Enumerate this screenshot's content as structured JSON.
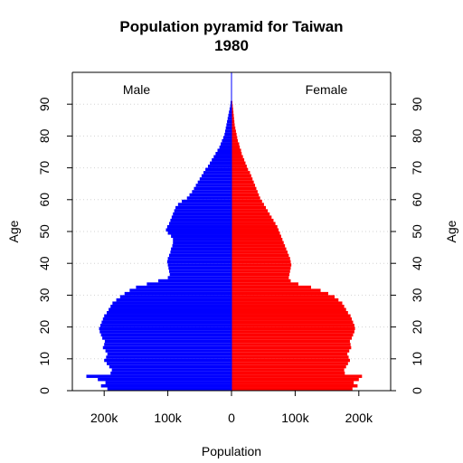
{
  "chart_data": {
    "type": "bar",
    "orientation": "horizontal-pyramid",
    "title": "Population pyramid for Taiwan",
    "subtitle": "1980",
    "xlabel": "Population",
    "ylabel": "Age",
    "legend": {
      "left_label": "Male",
      "right_label": "Female"
    },
    "xlim": [
      -250000,
      250000
    ],
    "ylim": [
      0,
      100
    ],
    "x_ticks": [
      {
        "value": -200000,
        "label": "200k"
      },
      {
        "value": -100000,
        "label": "100k"
      },
      {
        "value": 0,
        "label": "0"
      },
      {
        "value": 100000,
        "label": "100k"
      },
      {
        "value": 200000,
        "label": "200k"
      }
    ],
    "y_ticks": [
      0,
      10,
      20,
      30,
      40,
      50,
      60,
      70,
      80,
      90
    ],
    "grid": "horizontal dotted at age ticks",
    "colors": {
      "male": "#0000ff",
      "female": "#ff0000",
      "center_line": "#0000ff",
      "grid": "#d3d3d3"
    },
    "ages": [
      0,
      1,
      2,
      3,
      4,
      5,
      6,
      7,
      8,
      9,
      10,
      11,
      12,
      13,
      14,
      15,
      16,
      17,
      18,
      19,
      20,
      21,
      22,
      23,
      24,
      25,
      26,
      27,
      28,
      29,
      30,
      31,
      32,
      33,
      34,
      35,
      36,
      37,
      38,
      39,
      40,
      41,
      42,
      43,
      44,
      45,
      46,
      47,
      48,
      49,
      50,
      51,
      52,
      53,
      54,
      55,
      56,
      57,
      58,
      59,
      60,
      61,
      62,
      63,
      64,
      65,
      66,
      67,
      68,
      69,
      70,
      71,
      72,
      73,
      74,
      75,
      76,
      77,
      78,
      79,
      80,
      81,
      82,
      83,
      84,
      85,
      86,
      87,
      88,
      89,
      90
    ],
    "series": [
      {
        "name": "Male",
        "values": [
          195000,
          205000,
          198000,
          210000,
          228000,
          190000,
          188000,
          192000,
          196000,
          200000,
          197000,
          195000,
          198000,
          202000,
          200000,
          199000,
          203000,
          205000,
          207000,
          208000,
          206000,
          204000,
          202000,
          200000,
          196000,
          193000,
          190000,
          187000,
          181000,
          175000,
          168000,
          160000,
          150000,
          133000,
          115000,
          100000,
          97000,
          98000,
          99000,
          100000,
          101000,
          100000,
          98000,
          96000,
          95000,
          93000,
          92000,
          92000,
          95000,
          100000,
          103000,
          101000,
          98000,
          96000,
          94000,
          92000,
          90000,
          88000,
          84000,
          78000,
          70000,
          66000,
          62000,
          59000,
          56000,
          53000,
          50000,
          47000,
          44000,
          41000,
          37000,
          34000,
          31000,
          28000,
          25000,
          22000,
          19000,
          17000,
          15000,
          13000,
          11000,
          10000,
          9000,
          8000,
          7000,
          6000,
          5000,
          4000,
          3000,
          2000,
          1500
        ]
      },
      {
        "name": "Female",
        "values": [
          190000,
          198000,
          192000,
          200000,
          205000,
          178000,
          177000,
          180000,
          183000,
          186000,
          184000,
          182000,
          185000,
          188000,
          187000,
          186000,
          189000,
          191000,
          193000,
          194000,
          193000,
          191000,
          189000,
          187000,
          183000,
          180000,
          177000,
          174000,
          168000,
          162000,
          152000,
          140000,
          125000,
          105000,
          93000,
          90000,
          91000,
          92000,
          93000,
          94000,
          93000,
          92000,
          90000,
          88000,
          86000,
          84000,
          82000,
          80000,
          78000,
          76000,
          74000,
          72000,
          69000,
          66000,
          63000,
          60000,
          57000,
          54000,
          51000,
          48000,
          45000,
          43000,
          41000,
          39000,
          37000,
          35000,
          33000,
          31000,
          29000,
          26000,
          24000,
          22000,
          20000,
          18000,
          16000,
          15000,
          13000,
          12000,
          10000,
          9000,
          8000,
          7000,
          6000,
          5000,
          4500,
          4000,
          3500,
          3000,
          2500,
          2000,
          1500
        ]
      }
    ]
  }
}
